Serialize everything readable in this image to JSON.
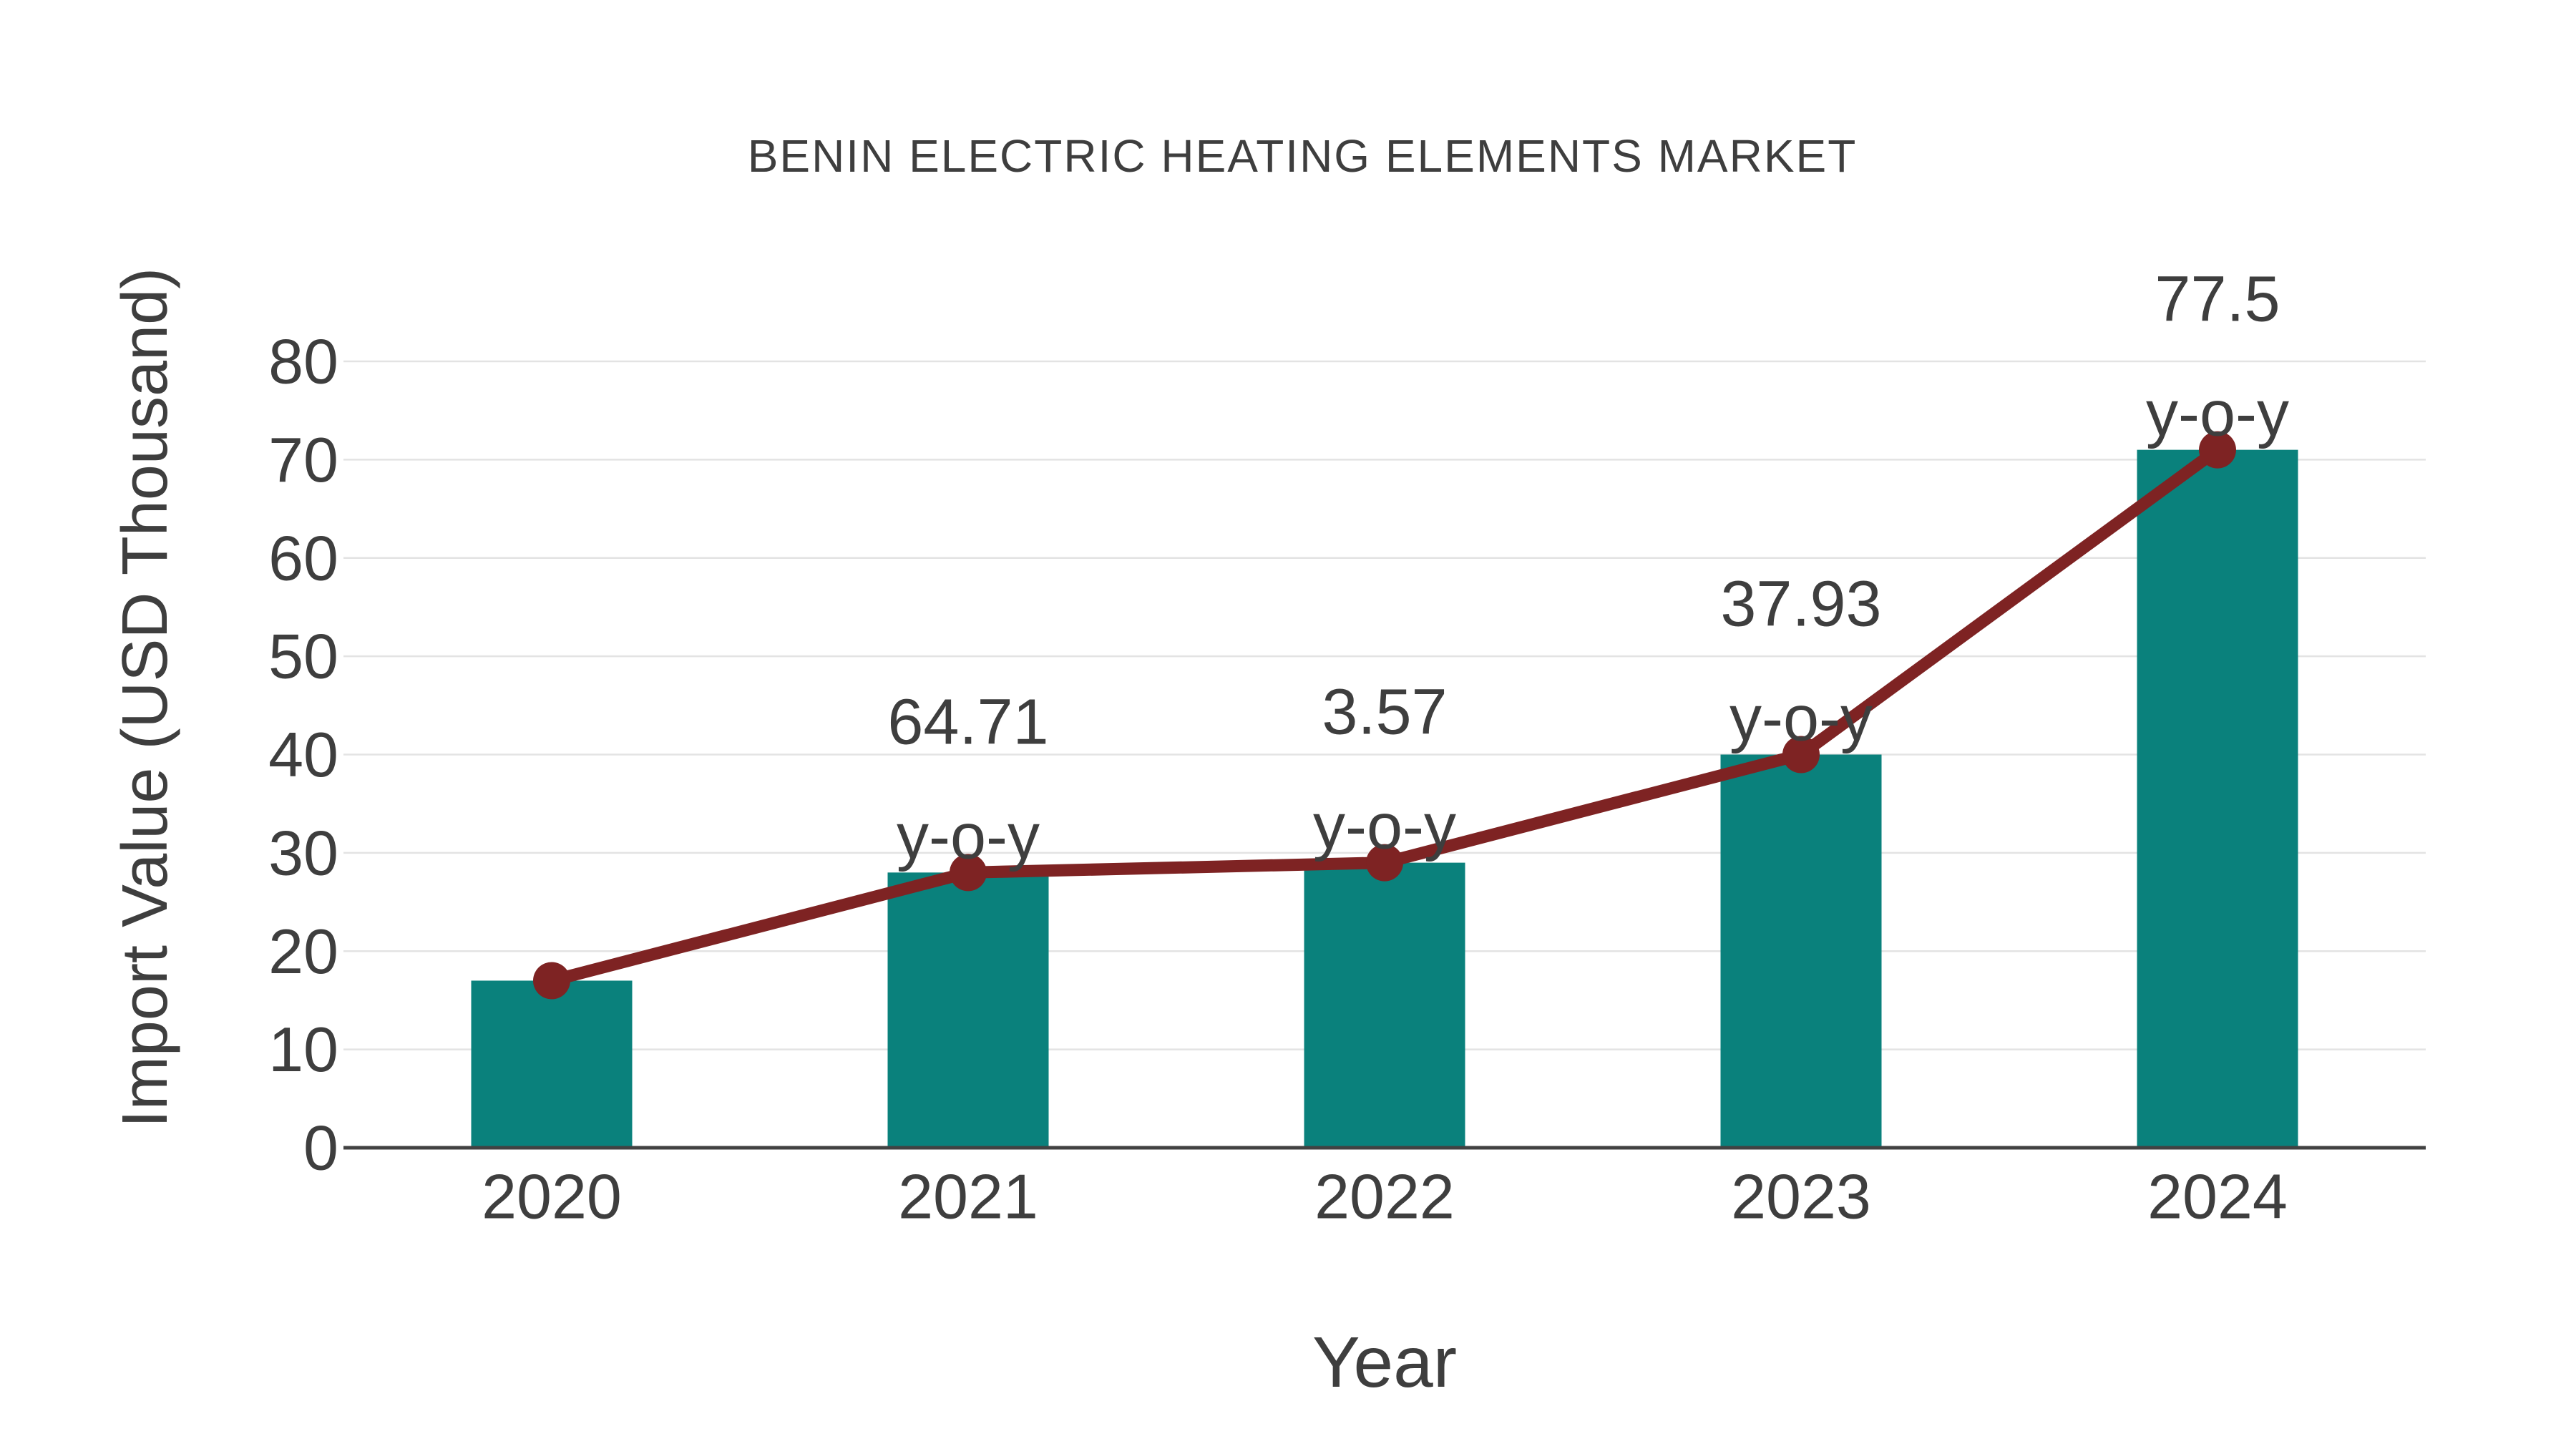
{
  "page": {
    "background": "#ffffff"
  },
  "chart_data": {
    "type": "bar",
    "title": "BENIN ELECTRIC HEATING ELEMENTS MARKET",
    "xlabel": "Year",
    "ylabel": "Import Value (USD Thousand)",
    "categories": [
      "2020",
      "2021",
      "2022",
      "2023",
      "2024"
    ],
    "series": [
      {
        "name": "import-value-bars",
        "type": "bar",
        "values": [
          17,
          28,
          29,
          40,
          71
        ],
        "color": "#0A817C"
      },
      {
        "name": "import-value-trend",
        "type": "line",
        "values": [
          17,
          28,
          29,
          40,
          71
        ],
        "color": "#7E2323"
      }
    ],
    "annotations": [
      {
        "category": "2021",
        "value_label": "64.71",
        "suffix": "y-o-y"
      },
      {
        "category": "2022",
        "value_label": "3.57",
        "suffix": "y-o-y"
      },
      {
        "category": "2023",
        "value_label": "37.93",
        "suffix": "y-o-y"
      },
      {
        "category": "2024",
        "value_label": "77.5",
        "suffix": "y-o-y"
      }
    ],
    "y_ticks": [
      0,
      10,
      20,
      30,
      40,
      50,
      60,
      70,
      80
    ],
    "ylim": [
      0,
      80
    ],
    "grid": true,
    "legend": false,
    "colors": {
      "text": "#3E3E3E",
      "grid": "#E3E3E3",
      "axis": "#424242"
    }
  }
}
